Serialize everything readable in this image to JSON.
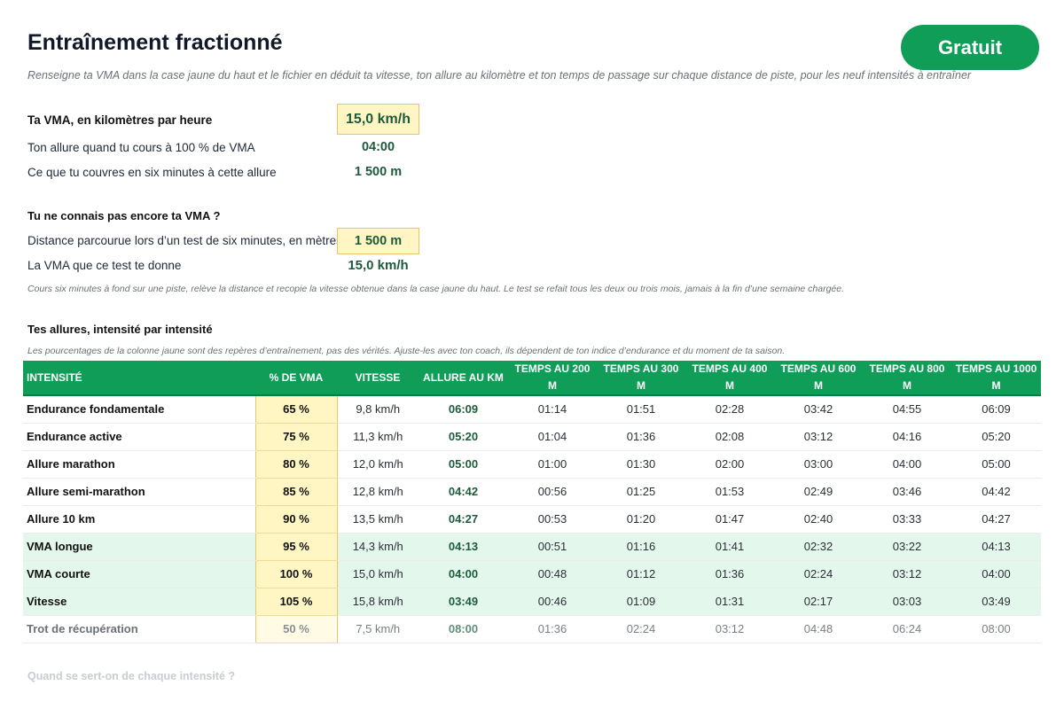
{
  "header": {
    "title": "Entraînement fractionné",
    "badge": "Gratuit",
    "subtitle": "Renseigne ta VMA dans la case jaune du haut et le fichier en déduit ta vitesse, ton allure au kilomètre et ton temps de passage sur chaque distance de piste, pour les neuf intensités à entraîner"
  },
  "vma": {
    "label": "Ta VMA, en kilomètres par heure",
    "value": "15,0 km/h",
    "pace_label": "Ton allure quand tu cours à 100 % de VMA",
    "pace_value": "04:00",
    "six_label": "Ce que tu couvres en six minutes à cette allure",
    "six_value": "1 500 m"
  },
  "test": {
    "title": "Tu ne connais pas encore ta VMA ?",
    "distance_label": "Distance parcourue lors d’un test de six minutes, en mètres",
    "distance_value": "1 500 m",
    "result_label": "La VMA que ce test te donne",
    "result_value": "15,0 km/h",
    "note": "Cours six minutes à fond sur une piste, relève la distance et recopie la vitesse obtenue dans la case jaune du haut. Le test se refait tous les deux ou trois mois, jamais à la fin d’une semaine chargée."
  },
  "paces": {
    "title": "Tes allures, intensité par intensité",
    "note": "Les pourcentages de la colonne jaune sont des repères d’entraînement, pas des vérités. Ajuste-les avec ton coach, ils dépendent de ton indice d’endurance et du moment de ta saison.",
    "columns": [
      "INTENSITÉ",
      "% DE VMA",
      "VITESSE",
      "ALLURE AU KM",
      "TEMPS AU 200 M",
      "TEMPS AU 300 M",
      "TEMPS AU 400 M",
      "TEMPS AU 600 M",
      "TEMPS AU 800 M",
      "TEMPS AU 1000 M"
    ],
    "rows": [
      [
        "Endurance fondamentale",
        "65 %",
        "9,8 km/h",
        "06:09",
        "01:14",
        "01:51",
        "02:28",
        "03:42",
        "04:55",
        "06:09"
      ],
      [
        "Endurance active",
        "75 %",
        "11,3 km/h",
        "05:20",
        "01:04",
        "01:36",
        "02:08",
        "03:12",
        "04:16",
        "05:20"
      ],
      [
        "Allure marathon",
        "80 %",
        "12,0 km/h",
        "05:00",
        "01:00",
        "01:30",
        "02:00",
        "03:00",
        "04:00",
        "05:00"
      ],
      [
        "Allure semi-marathon",
        "85 %",
        "12,8 km/h",
        "04:42",
        "00:56",
        "01:25",
        "01:53",
        "02:49",
        "03:46",
        "04:42"
      ],
      [
        "Allure 10 km",
        "90 %",
        "13,5 km/h",
        "04:27",
        "00:53",
        "01:20",
        "01:47",
        "02:40",
        "03:33",
        "04:27"
      ],
      [
        "VMA longue",
        "95 %",
        "14,3 km/h",
        "04:13",
        "00:51",
        "01:16",
        "01:41",
        "02:32",
        "03:22",
        "04:13"
      ],
      [
        "VMA courte",
        "100 %",
        "15,0 km/h",
        "04:00",
        "00:48",
        "01:12",
        "01:36",
        "02:24",
        "03:12",
        "04:00"
      ],
      [
        "Vitesse",
        "105 %",
        "15,8 km/h",
        "03:49",
        "00:46",
        "01:09",
        "01:31",
        "02:17",
        "03:03",
        "03:49"
      ],
      [
        "Trot de récupération",
        "50 %",
        "7,5 km/h",
        "08:00",
        "01:36",
        "02:24",
        "03:12",
        "04:48",
        "06:24",
        "08:00"
      ]
    ],
    "row_styles": [
      "",
      "",
      "",
      "",
      "",
      "hl",
      "hl",
      "hl",
      "muted"
    ]
  },
  "footer": {
    "question": "Quand se sert-on de chaque intensité ?"
  },
  "colors": {
    "accent": "#0f9d58",
    "input_yellow": "#fff6c4",
    "highlight_green": "#e4f7ec",
    "value_green": "#1e5b3c"
  }
}
